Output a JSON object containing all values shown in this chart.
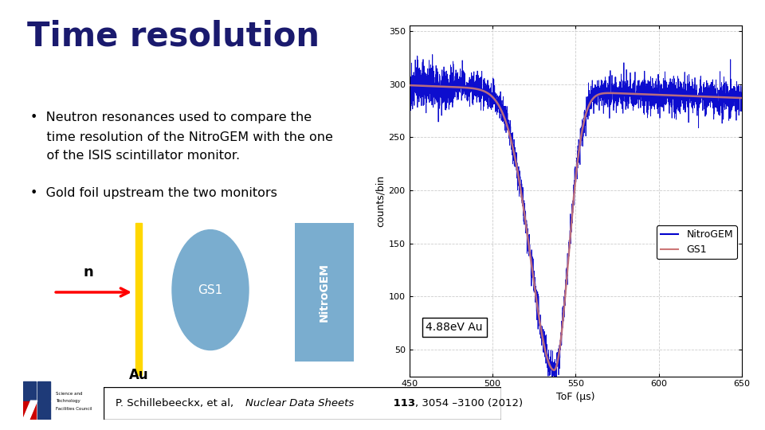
{
  "title": "Time resolution",
  "title_color": "#1a1a6e",
  "title_fontsize": 30,
  "title_fontweight": "bold",
  "bullet1_line1": "•  Neutron resonances used to compare the",
  "bullet1_line2": "    time resolution of the NitroGEM with the one",
  "bullet1_line3": "    of the ISIS scintillator monitor.",
  "bullet2": "•  Gold foil upstream the two monitors",
  "bullet_fontsize": 11.5,
  "diagram_label_n": "n",
  "diagram_label_Au": "Au",
  "diagram_label_GS1": "GS1",
  "diagram_label_NitroGEM": "NitroGEM",
  "annotation_text": "4.88eV Au",
  "plot_xlabel": "ToF (μs)",
  "plot_ylabel": "counts/bin",
  "plot_xlim": [
    450,
    650
  ],
  "plot_ylim": [
    25,
    355
  ],
  "plot_xticks": [
    450,
    500,
    550,
    600,
    650
  ],
  "plot_yticks": [
    50,
    100,
    150,
    200,
    250,
    300,
    350
  ],
  "legend_labels": [
    "NitroGEM",
    "GS1"
  ],
  "line_color_nitrogem": "#0000cc",
  "line_color_gs1": "#cc7777",
  "bg_color": "#ffffff",
  "plot_bg_color": "#ffffff",
  "reference_text_plain": "P. Schillebeeckx, et al,  ",
  "reference_text_italic": "Nuclear Data Sheets",
  "reference_text_bold": " 113",
  "reference_text_end": ", 3054 –3100 (2012)",
  "gold_color": "#FFD700",
  "gs1_ellipse_color": "#7aadcf",
  "nitrogem_box_color": "#7aadcf",
  "nitrogem_text_color": "#ffffff",
  "grid_color": "#aaaaaa",
  "grid_alpha": 0.6
}
